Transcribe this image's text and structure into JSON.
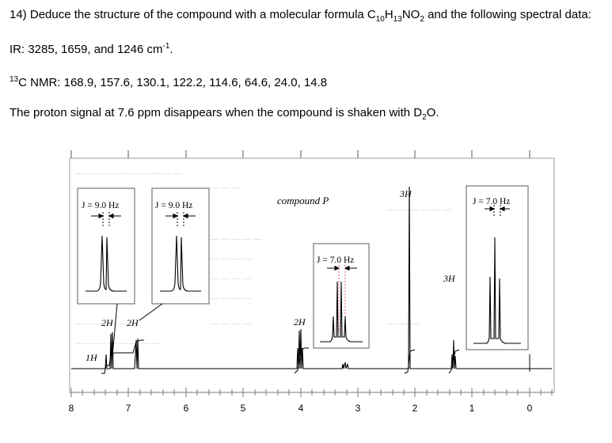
{
  "question": {
    "number": "14)",
    "text_before": "Deduce the structure of the compound with a molecular formula C",
    "c_count": "10",
    "h_letter": "H",
    "h_count": "13",
    "n_letter": "NO",
    "o_count": "2",
    "text_after": " and the following spectral data:"
  },
  "ir": {
    "text": "IR: 3285, 1659, and 1246 cm",
    "exp": "-1",
    "tail": "."
  },
  "c13": {
    "sup": "13",
    "text": "C NMR: 168.9, 157.6, 130.1, 122.2, 114.6, 64.6, 24.0, 14.8"
  },
  "proton_note": {
    "text": "The proton signal at 7.6 ppm disappears when the compound is shaken with D",
    "sub": "2",
    "tail": "O."
  },
  "spectrum": {
    "compound_label": "compound P",
    "x_ticks": [
      "8",
      "7",
      "6",
      "5",
      "4",
      "3",
      "2",
      "1",
      "0"
    ],
    "integrations": [
      "1H",
      "2H",
      "2H",
      "2H",
      "3H",
      "3H"
    ],
    "couplings": [
      "J = 9.0 Hz",
      "J = 9.0 Hz",
      "J = 7.0 Hz",
      "J = 7.0 Hz"
    ],
    "colors": {
      "box_border": "#777777",
      "faded_text": "#c8c8c8",
      "ink": "#000000"
    }
  }
}
